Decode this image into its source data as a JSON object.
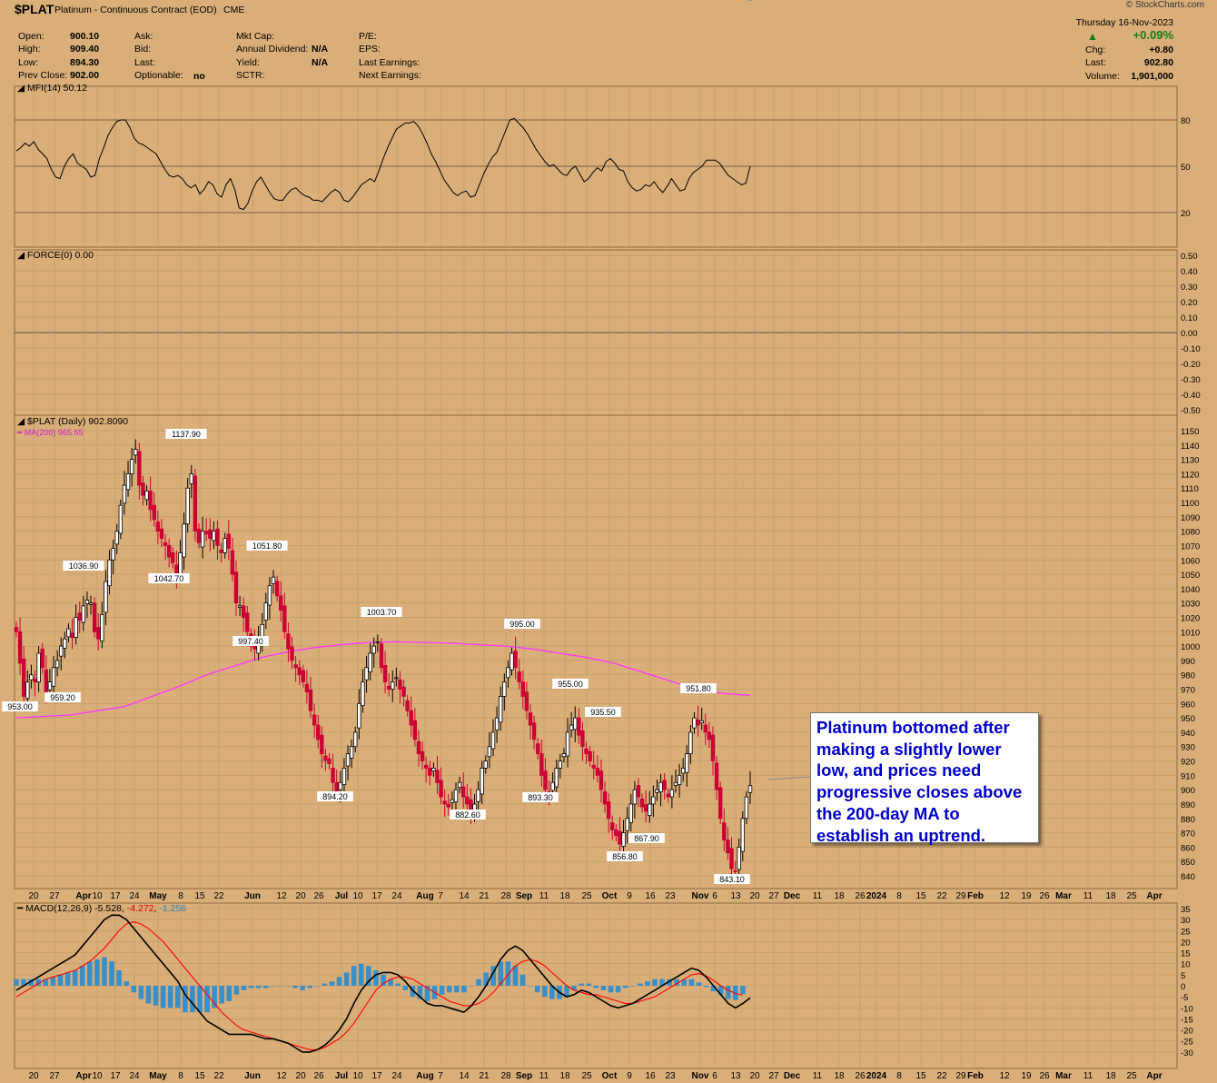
{
  "header": {
    "symbol": "$PLAT",
    "name": "Platinum - Continuous Contract (EOD)",
    "exchange": "CME",
    "brand": "© StockCharts.com",
    "date": "Thursday  16-Nov-2023",
    "chg_pct": "+0.09%",
    "stats": {
      "open_label": "Open:",
      "open": "900.10",
      "high_label": "High:",
      "high": "909.40",
      "low_label": "Low:",
      "low": "894.30",
      "prev_label": "Prev Close:",
      "prev": "902.00",
      "ask_label": "Ask:",
      "bid_label": "Bid:",
      "last_label": "Last:",
      "optionable_label": "Optionable:",
      "optionable": "no",
      "mktcap_label": "Mkt Cap:",
      "div_label": "Annual Dividend:",
      "div": "N/A",
      "yield_label": "Yield:",
      "yield": "N/A",
      "sctr_label": "SCTR:",
      "pe_label": "P/E:",
      "eps_label": "EPS:",
      "lastearn_label": "Last Earnings:",
      "nextearn_label": "Next Earnings:",
      "chg_label": "Chg:",
      "chg": "+0.80",
      "rlast_label": "Last:",
      "rlast": "902.80",
      "vol_label": "Volume:",
      "vol": "1,901,000"
    }
  },
  "panels": {
    "mfi_label": "MFI(14) 50.12",
    "force_label": "FORCE(0) 0.00",
    "price_label": "$PLAT (Daily) 902.80",
    "price_label_tail": "90",
    "ma_label": "MA(200) 965.65",
    "macd_label_head": "MACD(12,26,9)",
    "macd_v1": "-5.528",
    "macd_v2": "-4.272",
    "macd_v3": "-1.256"
  },
  "callout": "Platinum bottomed after making a slightly lower low, and prices need progressive closes above the 200-day MA to establish an uptrend.",
  "colors": {
    "background": "#d9ae78",
    "up_candle": "#000000",
    "down_candle": "#cc0033",
    "ma": "#ff33ff",
    "macd_line": "#000000",
    "signal_line": "#ff0000",
    "histogram": "#3a8fc8",
    "callout_text": "#0000cc"
  },
  "chart_data": [
    {
      "type": "line",
      "title": "MFI(14) 50.12",
      "ylim": [
        0,
        100
      ],
      "yticks": [
        20,
        50,
        80
      ],
      "x_start": "2023-03-17",
      "x_end": "2023-11-16",
      "series": [
        {
          "name": "MFI(14)",
          "values": [
            60,
            62,
            65,
            63,
            66,
            61,
            58,
            55,
            48,
            43,
            42,
            50,
            55,
            58,
            52,
            50,
            48,
            43,
            44,
            55,
            62,
            70,
            75,
            79,
            80,
            80,
            75,
            68,
            65,
            64,
            62,
            60,
            58,
            53,
            48,
            44,
            43,
            44,
            42,
            38,
            36,
            38,
            32,
            35,
            40,
            38,
            32,
            30,
            38,
            42,
            35,
            23,
            22,
            26,
            34,
            40,
            43,
            38,
            33,
            29,
            28,
            28,
            32,
            35,
            36,
            33,
            31,
            30,
            28,
            28,
            27,
            30,
            33,
            35,
            33,
            28,
            27,
            30,
            34,
            38,
            40,
            42,
            40,
            47,
            55,
            62,
            68,
            74,
            76,
            78,
            78,
            79,
            76,
            71,
            65,
            58,
            53,
            47,
            41,
            37,
            33,
            31,
            33,
            34,
            30,
            31,
            38,
            45,
            51,
            56,
            59,
            66,
            73,
            80,
            81,
            78,
            75,
            71,
            66,
            61,
            57,
            53,
            50,
            51,
            48,
            45,
            44,
            48,
            50,
            45,
            40,
            42,
            46,
            49,
            47,
            53,
            55,
            52,
            48,
            47,
            40,
            36,
            34,
            35,
            38,
            37,
            40,
            36,
            33,
            37,
            42,
            38,
            34,
            35,
            42,
            46,
            48,
            50,
            54,
            54,
            54,
            52,
            48,
            44,
            42,
            40,
            38,
            39,
            50
          ]
        }
      ]
    },
    {
      "type": "line",
      "title": "FORCE(0) 0.00",
      "ylim": [
        -0.5,
        0.5
      ],
      "yticks": [
        0.5,
        0.4,
        0.3,
        0.2,
        0.1,
        0.0,
        -0.1,
        -0.2,
        -0.3,
        -0.4,
        -0.5
      ],
      "series": [
        {
          "name": "FORCE(0)",
          "values": [
            0
          ]
        }
      ]
    },
    {
      "type": "candlestick",
      "title": "$PLAT (Daily) 902.80",
      "ylim": [
        833,
        1157
      ],
      "yticks": [
        840,
        850,
        860,
        870,
        880,
        890,
        900,
        910,
        920,
        930,
        940,
        950,
        960,
        970,
        980,
        990,
        1000,
        1010,
        1020,
        1030,
        1040,
        1050,
        1060,
        1070,
        1080,
        1090,
        1100,
        1110,
        1120,
        1130,
        1140,
        1150
      ],
      "x_start": "2023-03-17",
      "x_end": "2023-11-16",
      "closes": [
        1010,
        988,
        965,
        975,
        980,
        975,
        995,
        985,
        968,
        975,
        985,
        990,
        1000,
        1005,
        1012,
        1006,
        1020,
        1018,
        1028,
        1032,
        1030,
        1010,
        1005,
        1022,
        1045,
        1060,
        1068,
        1080,
        1098,
        1112,
        1120,
        1130,
        1137,
        1112,
        1105,
        1108,
        1095,
        1088,
        1080,
        1075,
        1070,
        1062,
        1058,
        1048,
        1065,
        1085,
        1110,
        1120,
        1080,
        1072,
        1080,
        1078,
        1075,
        1080,
        1070,
        1065,
        1075,
        1068,
        1050,
        1030,
        1028,
        1020,
        1010,
        1000,
        998,
        1005,
        1015,
        1030,
        1042,
        1048,
        1035,
        1025,
        1010,
        998,
        990,
        985,
        980,
        975,
        968,
        955,
        945,
        935,
        925,
        920,
        918,
        905,
        897,
        905,
        915,
        925,
        930,
        940,
        960,
        975,
        985,
        995,
        1000,
        1003,
        985,
        975,
        970,
        975,
        978,
        970,
        965,
        955,
        945,
        935,
        925,
        920,
        915,
        910,
        915,
        905,
        895,
        890,
        888,
        893,
        900,
        905,
        895,
        890,
        885,
        890,
        900,
        915,
        920,
        930,
        940,
        950,
        965,
        975,
        985,
        995,
        985,
        975,
        965,
        955,
        945,
        935,
        925,
        910,
        900,
        898,
        905,
        915,
        920,
        925,
        940,
        945,
        950,
        938,
        930,
        925,
        920,
        915,
        910,
        900,
        890,
        880,
        872,
        868,
        862,
        870,
        880,
        890,
        900,
        895,
        888,
        885,
        890,
        895,
        900,
        905,
        900,
        895,
        900,
        905,
        910,
        915,
        925,
        940,
        950,
        945,
        948,
        940,
        935,
        920,
        900,
        880,
        865,
        856,
        845,
        843,
        860,
        880,
        895,
        902.8
      ]
    },
    {
      "type": "line",
      "title": "MA(200) 965.65",
      "series": [
        {
          "name": "MA(200)",
          "values": [
            950,
            951,
            952,
            955,
            958,
            965,
            972,
            980,
            986,
            992,
            996,
            999,
            1001,
            1002.5,
            1003,
            1002.5,
            1002,
            1001,
            1000,
            998,
            995,
            992,
            988,
            982,
            976,
            970,
            967,
            965.65
          ]
        }
      ]
    },
    {
      "type": "bar+line",
      "title": "MACD(12,26,9)",
      "ylim": [
        -35,
        35
      ],
      "yticks": [
        35,
        30,
        25,
        20,
        15,
        10,
        5,
        0,
        -5,
        -10,
        -15,
        -20,
        -25,
        -30
      ],
      "series": [
        {
          "name": "MACD",
          "values": [
            -2,
            0,
            2,
            4,
            6,
            8,
            10,
            12,
            14,
            18,
            22,
            26,
            30,
            32,
            32,
            30,
            26,
            22,
            18,
            14,
            10,
            6,
            2,
            -4,
            -8,
            -12,
            -16,
            -18,
            -20,
            -22,
            -22,
            -22,
            -22,
            -23,
            -24,
            -24,
            -25,
            -26,
            -28,
            -30,
            -30,
            -29,
            -27,
            -24,
            -20,
            -15,
            -8,
            -2,
            2,
            5,
            6,
            6,
            5,
            2,
            -2,
            -5,
            -8,
            -9,
            -9,
            -10,
            -11,
            -12,
            -9,
            -5,
            0,
            6,
            12,
            16,
            18,
            16,
            12,
            8,
            4,
            0,
            -3,
            -5,
            -4,
            -2,
            -3,
            -5,
            -7,
            -9,
            -10,
            -9,
            -8,
            -6,
            -4,
            -2,
            0,
            2,
            4,
            6,
            8,
            7,
            4,
            0,
            -4,
            -8,
            -10,
            -8,
            -5.5
          ]
        },
        {
          "name": "Signal",
          "values": [
            -5,
            -3,
            -1,
            1,
            3,
            4,
            5,
            6,
            7,
            9,
            11,
            14,
            17,
            21,
            25,
            28,
            29,
            28,
            26,
            23,
            20,
            16,
            12,
            8,
            4,
            0,
            -4,
            -8,
            -12,
            -15,
            -18,
            -20,
            -21,
            -22,
            -23,
            -24,
            -25,
            -26,
            -27,
            -28,
            -29,
            -29,
            -28,
            -26,
            -24,
            -21,
            -17,
            -12,
            -7,
            -2,
            1,
            3,
            4,
            4,
            3,
            1,
            -1,
            -3,
            -5,
            -7,
            -8,
            -9,
            -9,
            -8,
            -6,
            -3,
            1,
            5,
            9,
            11,
            12,
            11,
            9,
            6,
            3,
            0,
            -2,
            -3,
            -4,
            -4,
            -5,
            -6,
            -7,
            -8,
            -8,
            -7,
            -6,
            -5,
            -3,
            -1,
            1,
            3,
            5,
            5.5,
            4.5,
            2.5,
            0,
            -2,
            -3.5,
            -4.272
          ]
        }
      ]
    }
  ],
  "axis": {
    "x_ticks": [
      "20",
      "27",
      "Apr",
      "10",
      "17",
      "24",
      "May",
      "8",
      "15",
      "22",
      "Jun",
      "12",
      "20",
      "26",
      "Jul",
      "10",
      "17",
      "24",
      "Aug",
      "7",
      "14",
      "21",
      "28",
      "Sep",
      "11",
      "18",
      "25",
      "Oct",
      "9",
      "16",
      "23",
      "Nov",
      "6",
      "13",
      "20",
      "27",
      "Dec",
      "11",
      "18",
      "26",
      "2024",
      "8",
      "15",
      "22",
      "29",
      "Feb",
      "12",
      "19",
      "26",
      "Mar",
      "11",
      "18",
      "25",
      "Apr"
    ]
  },
  "annotations": [
    {
      "text": "953.00",
      "value": 953.0
    },
    {
      "text": "959.20",
      "value": 959.2
    },
    {
      "text": "1036.90",
      "value": 1036.9
    },
    {
      "text": "1137.90",
      "value": 1137.9
    },
    {
      "text": "1042.70",
      "value": 1042.7
    },
    {
      "text": "1051.80",
      "value": 1051.8
    },
    {
      "text": "997.40",
      "value": 997.4
    },
    {
      "text": "1003.70",
      "value": 1003.7
    },
    {
      "text": "894.20",
      "value": 894.2
    },
    {
      "text": "882.60",
      "value": 882.6
    },
    {
      "text": "995.00",
      "value": 995.0
    },
    {
      "text": "893.30",
      "value": 893.3
    },
    {
      "text": "955.00",
      "value": 955.0
    },
    {
      "text": "935.50",
      "value": 935.5
    },
    {
      "text": "856.80",
      "value": 856.8
    },
    {
      "text": "867.90",
      "value": 867.9
    },
    {
      "text": "951.80",
      "value": 951.8
    },
    {
      "text": "843.10",
      "value": 843.1
    }
  ]
}
